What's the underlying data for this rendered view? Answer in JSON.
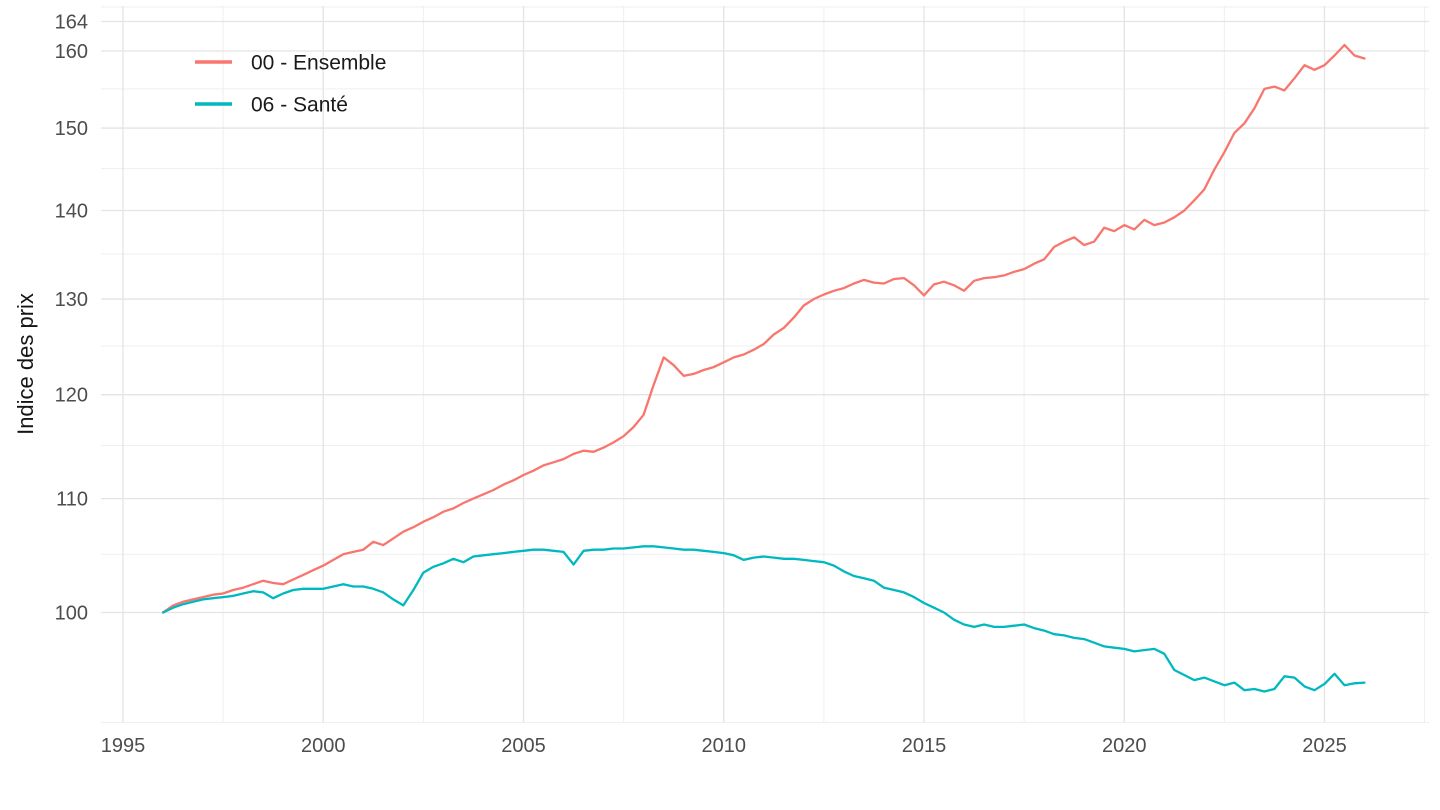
{
  "y_axis": {
    "title": "Indice des prix",
    "tick_labels": [
      "164",
      "160",
      "150",
      "140",
      "130",
      "120",
      "110",
      "100"
    ],
    "tick_values": [
      164,
      160,
      150,
      140,
      130,
      120,
      110,
      100
    ],
    "minor_values": [
      155,
      145,
      135,
      125,
      115,
      105
    ],
    "scale": "log10"
  },
  "x_axis": {
    "tick_labels": [
      "1995",
      "2000",
      "2005",
      "2010",
      "2015",
      "2020",
      "2025"
    ],
    "tick_values": [
      1995,
      2000,
      2005,
      2010,
      2015,
      2020,
      2025
    ],
    "minor_values": [
      1997.5,
      2002.5,
      2007.5,
      2012.5,
      2017.5,
      2022.5,
      2027.5
    ]
  },
  "legend": {
    "items": [
      {
        "label": "00 - Ensemble",
        "color": "#F8766D"
      },
      {
        "label": "06 - Santé",
        "color": "#00B9C0"
      }
    ]
  },
  "chart_data": {
    "type": "line",
    "title": "",
    "xlabel": "",
    "ylabel": "Indice des prix",
    "y_scale": "log",
    "x_range": [
      1995,
      2027.5
    ],
    "y_range": [
      91,
      167
    ],
    "grid": true,
    "legend_position": "top-left-inset",
    "x": [
      1996,
      1996.25,
      1996.5,
      1996.75,
      1997,
      1997.25,
      1997.5,
      1997.75,
      1998,
      1998.25,
      1998.5,
      1998.75,
      1999,
      1999.25,
      1999.5,
      1999.75,
      2000,
      2000.25,
      2000.5,
      2000.75,
      2001,
      2001.25,
      2001.5,
      2001.75,
      2002,
      2002.25,
      2002.5,
      2002.75,
      2003,
      2003.25,
      2003.5,
      2003.75,
      2004,
      2004.25,
      2004.5,
      2004.75,
      2005,
      2005.25,
      2005.5,
      2005.75,
      2006,
      2006.25,
      2006.5,
      2006.75,
      2007,
      2007.25,
      2007.5,
      2007.75,
      2008,
      2008.25,
      2008.5,
      2008.75,
      2009,
      2009.25,
      2009.5,
      2009.75,
      2010,
      2010.25,
      2010.5,
      2010.75,
      2011,
      2011.25,
      2011.5,
      2011.75,
      2012,
      2012.25,
      2012.5,
      2012.75,
      2013,
      2013.25,
      2013.5,
      2013.75,
      2014,
      2014.25,
      2014.5,
      2014.75,
      2015,
      2015.25,
      2015.5,
      2015.75,
      2016,
      2016.25,
      2016.5,
      2016.75,
      2017,
      2017.25,
      2017.5,
      2017.75,
      2018,
      2018.25,
      2018.5,
      2018.75,
      2019,
      2019.25,
      2019.5,
      2019.75,
      2020,
      2020.25,
      2020.5,
      2020.75,
      2021,
      2021.25,
      2021.5,
      2021.75,
      2022,
      2022.25,
      2022.5,
      2022.75,
      2023,
      2023.25,
      2023.5,
      2023.75,
      2024,
      2024.25,
      2024.5,
      2024.75,
      2025,
      2025.25,
      2025.5,
      2025.75,
      2026
    ],
    "series": [
      {
        "name": "00 - Ensemble",
        "color": "#F8766D",
        "values": [
          100.0,
          100.6,
          100.9,
          101.1,
          101.3,
          101.5,
          101.6,
          101.9,
          102.1,
          102.4,
          102.7,
          102.5,
          102.4,
          102.8,
          103.2,
          103.6,
          104.0,
          104.5,
          105.0,
          105.2,
          105.4,
          106.1,
          105.8,
          106.4,
          107.0,
          107.4,
          107.9,
          108.3,
          108.8,
          109.1,
          109.6,
          110.0,
          110.4,
          110.8,
          111.3,
          111.7,
          112.2,
          112.6,
          113.1,
          113.4,
          113.7,
          114.2,
          114.5,
          114.4,
          114.8,
          115.3,
          115.9,
          116.8,
          118.0,
          121.0,
          123.8,
          123.0,
          121.9,
          122.1,
          122.5,
          122.8,
          123.3,
          123.8,
          124.1,
          124.6,
          125.2,
          126.2,
          126.9,
          128.0,
          129.3,
          130.0,
          130.5,
          130.9,
          131.2,
          131.7,
          132.1,
          131.8,
          131.7,
          132.2,
          132.3,
          131.5,
          130.4,
          131.6,
          131.9,
          131.5,
          130.9,
          132.0,
          132.3,
          132.4,
          132.6,
          133.0,
          133.3,
          133.9,
          134.4,
          135.8,
          136.4,
          136.9,
          136.0,
          136.4,
          138.0,
          137.6,
          138.3,
          137.8,
          138.9,
          138.3,
          138.6,
          139.2,
          140.0,
          141.2,
          142.5,
          144.9,
          147.0,
          149.4,
          150.6,
          152.5,
          155.0,
          155.3,
          154.8,
          156.4,
          158.1,
          157.5,
          158.1,
          159.4,
          160.8,
          159.4,
          159.0
        ]
      },
      {
        "name": "06 - Santé",
        "color": "#00B9C0",
        "values": [
          100.0,
          100.4,
          100.7,
          100.9,
          101.1,
          101.2,
          101.3,
          101.4,
          101.6,
          101.8,
          101.7,
          101.2,
          101.6,
          101.9,
          102.0,
          102.0,
          102.0,
          102.2,
          102.4,
          102.2,
          102.2,
          102.0,
          101.7,
          101.1,
          100.6,
          101.9,
          103.4,
          103.9,
          104.2,
          104.6,
          104.3,
          104.8,
          104.9,
          105.0,
          105.1,
          105.2,
          105.3,
          105.4,
          105.4,
          105.3,
          105.2,
          104.1,
          105.3,
          105.4,
          105.4,
          105.5,
          105.5,
          105.6,
          105.7,
          105.7,
          105.6,
          105.5,
          105.4,
          105.4,
          105.3,
          105.2,
          105.1,
          104.9,
          104.5,
          104.7,
          104.8,
          104.7,
          104.6,
          104.6,
          104.5,
          104.4,
          104.3,
          104.0,
          103.5,
          103.1,
          102.9,
          102.7,
          102.1,
          101.9,
          101.7,
          101.3,
          100.8,
          100.4,
          100.0,
          99.4,
          99.0,
          98.8,
          99.0,
          98.8,
          98.8,
          98.9,
          99.0,
          98.7,
          98.5,
          98.2,
          98.1,
          97.9,
          97.8,
          97.5,
          97.2,
          97.1,
          97.0,
          96.8,
          96.9,
          97.0,
          96.6,
          95.3,
          94.9,
          94.5,
          94.7,
          94.4,
          94.1,
          94.3,
          93.7,
          93.8,
          93.6,
          93.8,
          94.8,
          94.7,
          94.0,
          93.7,
          94.2,
          95.0,
          94.1,
          94.25,
          94.3
        ]
      }
    ]
  }
}
